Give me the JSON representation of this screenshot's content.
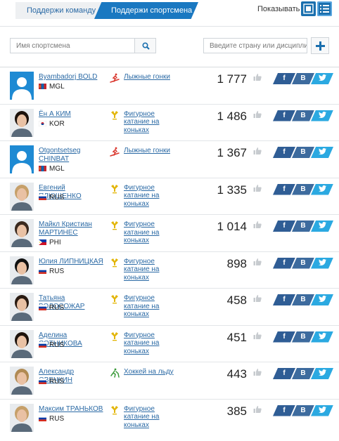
{
  "tabs": {
    "team": "Поддержи команду",
    "athlete": "Поддержи спортсмена"
  },
  "view": {
    "label": "Показывать"
  },
  "search": {
    "name_placeholder": "Имя спортсмена",
    "filter_placeholder": "Введите страну или дисциплину"
  },
  "colors": {
    "accent": "#1a78c1",
    "link": "#2b6aa5",
    "facebook": "#2f5d95",
    "vk": "#3d6b9e",
    "twitter": "#2ba9e1"
  },
  "share_labels": {
    "facebook": "f",
    "vk": "B"
  },
  "athletes": [
    {
      "name": "Byambadorj BOLD",
      "country": "MGL",
      "flag": "mgl",
      "sport": "Лыжные гонки",
      "sport_icon": "skier-icon",
      "count": "1 777",
      "photo": "placeholder"
    },
    {
      "name": "Ён А КИМ",
      "country": "KOR",
      "flag": "kor",
      "sport": "Фигурное катание на коньках",
      "sport_icon": "skate-icon",
      "count": "1 486",
      "photo": "portrait"
    },
    {
      "name": "Otgontsetseg CHINBAT",
      "country": "MGL",
      "flag": "mgl",
      "sport": "Лыжные гонки",
      "sport_icon": "skier-icon",
      "count": "1 367",
      "photo": "placeholder"
    },
    {
      "name": "Евгений ПЛЮЩЕНКО",
      "country": "RUS",
      "flag": "rus",
      "sport": "Фигурное катание на коньках",
      "sport_icon": "skate-icon",
      "count": "1 335",
      "photo": "portrait"
    },
    {
      "name": "Майкл Кристиан МАРТИНЕС",
      "country": "PHI",
      "flag": "phi",
      "sport": "Фигурное катание на коньках",
      "sport_icon": "skate-icon",
      "count": "1 014",
      "photo": "portrait"
    },
    {
      "name": "Юлия ЛИПНИЦКАЯ",
      "country": "RUS",
      "flag": "rus",
      "sport": "Фигурное катание на коньках",
      "sport_icon": "skate-icon",
      "count": "898",
      "photo": "portrait"
    },
    {
      "name": "Татьяна ВОЛОСОЖАР",
      "country": "RUS",
      "flag": "rus",
      "sport": "Фигурное катание на коньках",
      "sport_icon": "skate-icon",
      "count": "458",
      "photo": "portrait"
    },
    {
      "name": "Аделина СОТНИКОВА",
      "country": "RUS",
      "flag": "rus",
      "sport": "Фигурное катание на коньках",
      "sport_icon": "skate-icon",
      "count": "451",
      "photo": "portrait"
    },
    {
      "name": "Александр ОВЕЧКИН",
      "country": "RUS",
      "flag": "rus",
      "sport": "Хоккей на льду",
      "sport_icon": "hockey-icon",
      "count": "443",
      "photo": "portrait"
    },
    {
      "name": "Максим ТРАНЬКОВ",
      "country": "RUS",
      "flag": "rus",
      "sport": "Фигурное катание на коньках",
      "sport_icon": "skate-icon",
      "count": "385",
      "photo": "portrait"
    }
  ]
}
